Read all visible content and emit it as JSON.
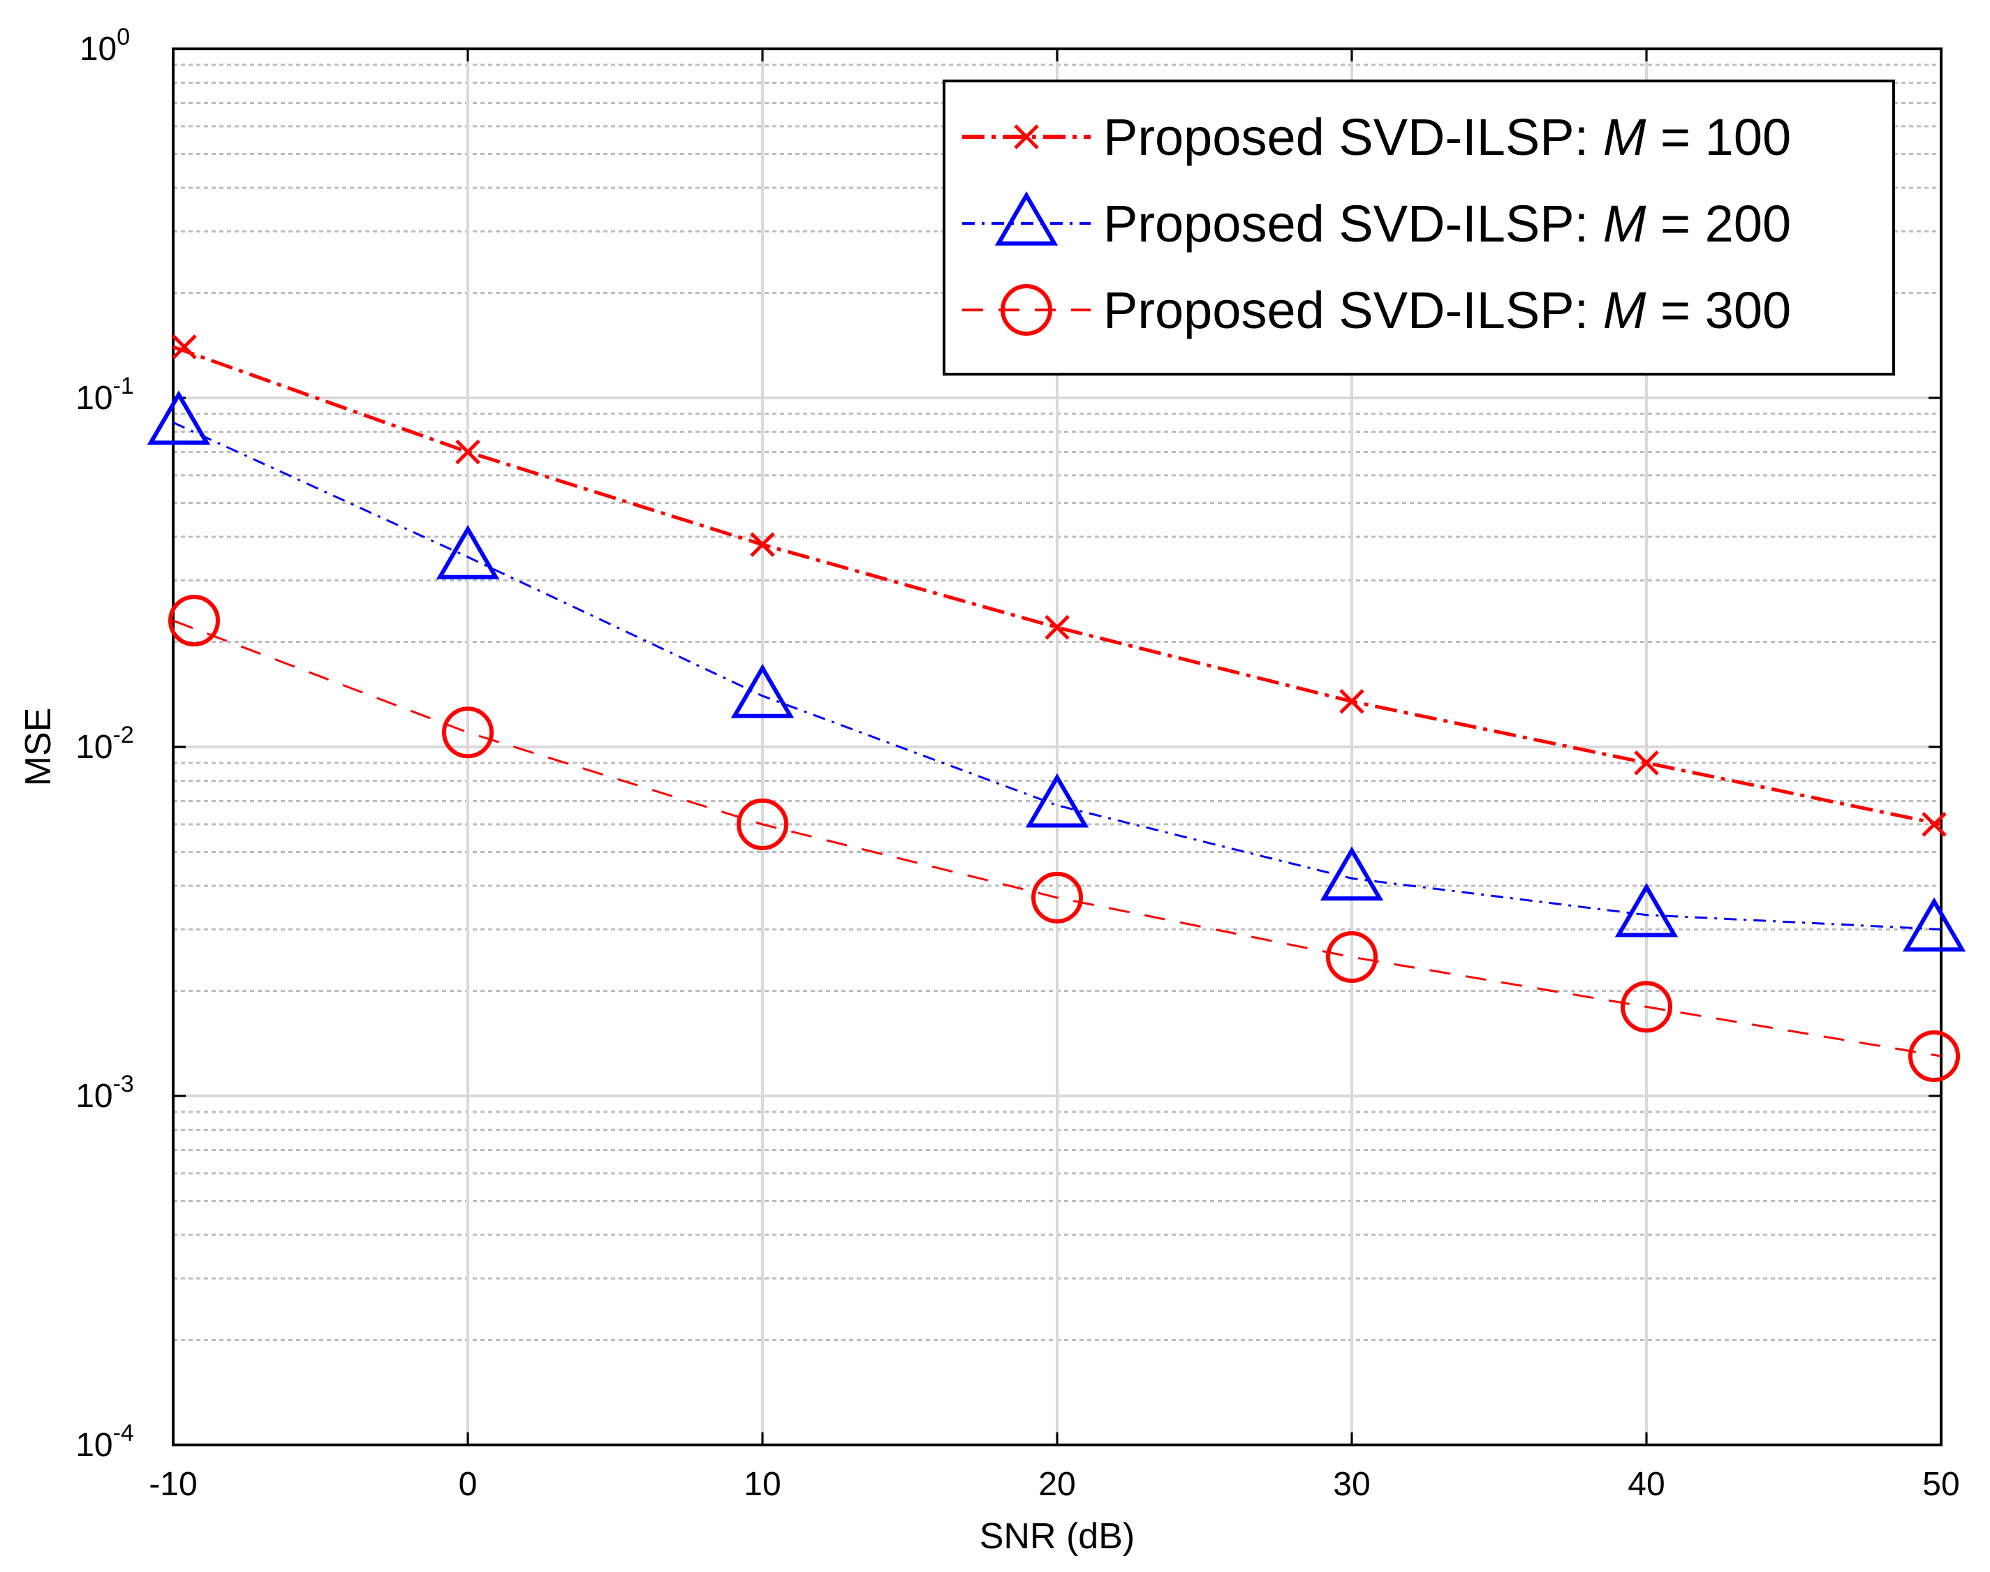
{
  "chart_data": {
    "type": "line",
    "title": "",
    "xlabel": "SNR (dB)",
    "ylabel": "MSE",
    "xlim": [
      -10,
      50
    ],
    "ylim": [
      0.0001,
      1
    ],
    "yscale": "log",
    "grid": true,
    "x": [
      -10,
      0,
      10,
      20,
      30,
      40,
      50
    ],
    "xticks": [
      "-10",
      "0",
      "10",
      "20",
      "30",
      "40",
      "50"
    ],
    "yticks": [
      {
        "base": "10",
        "exp": "0",
        "value": 1
      },
      {
        "base": "10",
        "exp": "-1",
        "value": 0.1
      },
      {
        "base": "10",
        "exp": "-2",
        "value": 0.01
      },
      {
        "base": "10",
        "exp": "-3",
        "value": 0.001
      },
      {
        "base": "10",
        "exp": "-4",
        "value": 0.0001
      }
    ],
    "legend_position": "top-right",
    "series": [
      {
        "name": "Proposed SVD-ILSP: ",
        "param": "M",
        "param_value": " = 100",
        "color": "#ff0000",
        "marker": "x",
        "line": "dashdot-heavy",
        "values": [
          0.14,
          0.07,
          0.038,
          0.022,
          0.0135,
          0.009,
          0.006
        ]
      },
      {
        "name": "Proposed SVD-ILSP: ",
        "param": "M",
        "param_value": " = 200",
        "color": "#0000ff",
        "marker": "triangle",
        "line": "dashdot",
        "values": [
          0.085,
          0.035,
          0.014,
          0.0068,
          0.0042,
          0.0033,
          0.003
        ]
      },
      {
        "name": "Proposed SVD-ILSP: ",
        "param": "M",
        "param_value": " = 300",
        "color": "#ff0000",
        "marker": "circle",
        "line": "dashed",
        "values": [
          0.023,
          0.011,
          0.006,
          0.0037,
          0.0025,
          0.0018,
          0.0013
        ]
      }
    ]
  }
}
